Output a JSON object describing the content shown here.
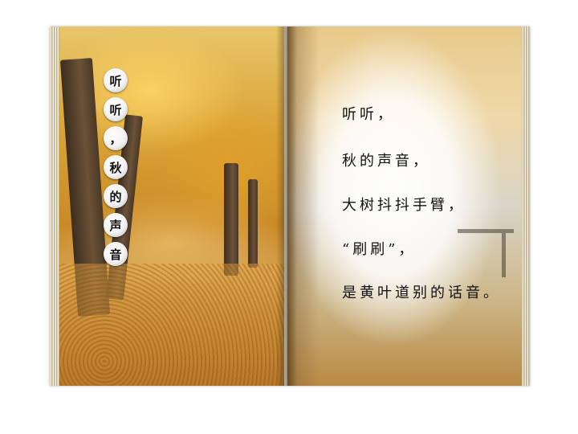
{
  "vertical_title": [
    "听",
    "听",
    "，",
    "秋",
    "的",
    "声",
    "音"
  ],
  "poem": {
    "lines": [
      "听听，",
      "秋的声音，",
      "大树抖抖手臂，",
      "“刷刷”，",
      "是黄叶道别的话音。"
    ]
  }
}
